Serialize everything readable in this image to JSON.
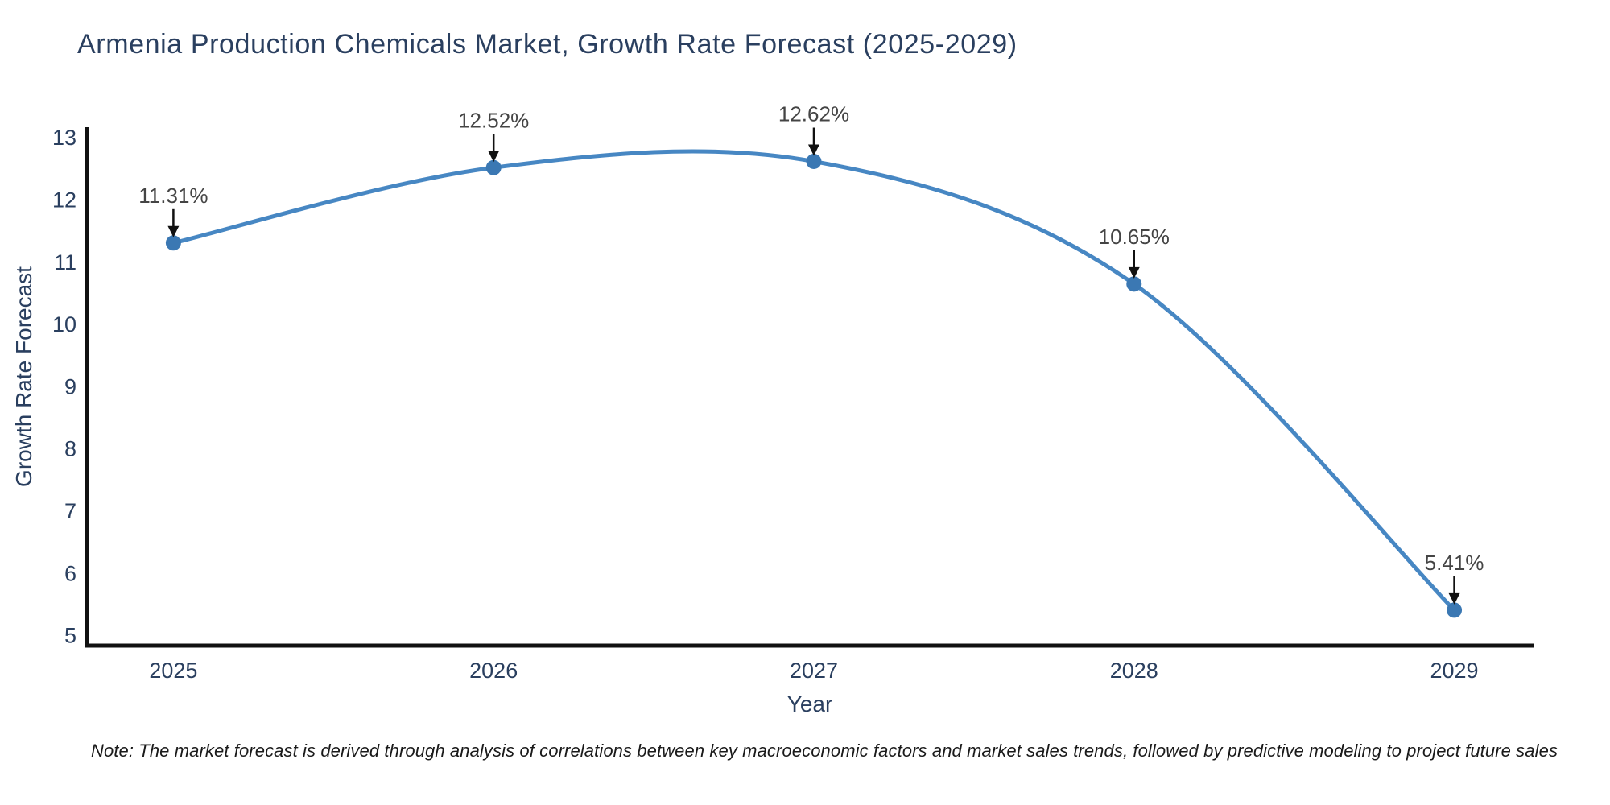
{
  "figure": {
    "title": "Armenia Production Chemicals Market, Growth Rate Forecast (2025-2029)",
    "note": "Note: The market forecast is derived through analysis of correlations between key macroeconomic factors and market sales trends, followed by predictive modeling to project future sales"
  },
  "chart_data": {
    "type": "line",
    "title": "Armenia Production Chemicals Market, Growth Rate Forecast (2025-2029)",
    "xlabel": "Year",
    "ylabel": "Growth Rate Forecast",
    "x": [
      2025,
      2026,
      2027,
      2028,
      2029
    ],
    "series": [
      {
        "name": "Growth Rate Forecast",
        "values": [
          11.31,
          12.52,
          12.62,
          10.65,
          5.41
        ],
        "point_labels": [
          "11.31%",
          "12.52%",
          "12.62%",
          "10.65%",
          "5.41%"
        ]
      }
    ],
    "line_shape": "spline",
    "markers": true,
    "grid": false,
    "legend": "none",
    "annotation_style": "value-above-with-down-arrow",
    "xticks": [
      "2025",
      "2026",
      "2027",
      "2028",
      "2029"
    ],
    "yticks": [
      5,
      6,
      7,
      8,
      9,
      10,
      11,
      12,
      13
    ],
    "xlim": [
      2024.73,
      2029.25
    ],
    "ylim": [
      4.84,
      13.17
    ],
    "colors": {
      "line": "#4787c3",
      "marker": "#3b78b3",
      "axis_line": "#111111",
      "title_text": "#2a3f5f",
      "tick_text": "#2a3f5f",
      "axis_title_text": "#2a3f5f",
      "annotation_text": "#444444",
      "arrow": "#111111",
      "background": "#ffffff"
    }
  }
}
